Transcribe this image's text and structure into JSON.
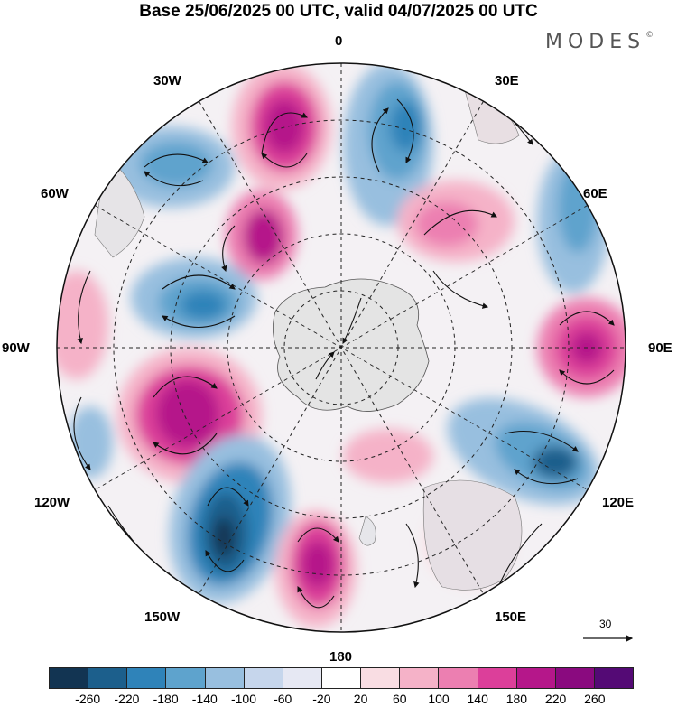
{
  "title": "Base 25/06/2025 00 UTC, valid 04/07/2025 00 UTC",
  "brand": {
    "name": "MODES",
    "mark": "©"
  },
  "longitude_labels": {
    "0": "0",
    "30E": "30E",
    "60E": "60E",
    "90E": "90E",
    "120E": "120E",
    "150E": "150E",
    "180": "180",
    "150W": "150W",
    "120W": "120W",
    "90W": "90W",
    "60W": "60W",
    "30W": "30W"
  },
  "reference_vector": {
    "label": "30"
  },
  "colorbar": {
    "colors": [
      "#123452",
      "#1c5f8c",
      "#2f83b9",
      "#5ea3cd",
      "#98bfdf",
      "#c6d6ec",
      "#e6e8f3",
      "#ffffff",
      "#f9dde3",
      "#f5b2c8",
      "#ec7fb1",
      "#dc3f9a",
      "#b5178a",
      "#8a0a7f",
      "#540a75"
    ],
    "ticks": [
      "-260",
      "-220",
      "-180",
      "-140",
      "-100",
      "-60",
      "-20",
      "20",
      "60",
      "100",
      "140",
      "180",
      "220",
      "260"
    ]
  },
  "colors": {
    "land": "#e4e4e4",
    "coast": "#555555",
    "grid": "#222222",
    "vector": "#111111"
  },
  "anomaly_centers": [
    {
      "region": "near 30W",
      "value": 240
    },
    {
      "region": "near 10E",
      "value": -180
    },
    {
      "region": "near 45W",
      "value": -160
    },
    {
      "region": "near 50E",
      "value": 120
    },
    {
      "region": "near 50W",
      "value": 180
    },
    {
      "region": "near 75W",
      "value": -190
    },
    {
      "region": "near 90E",
      "value": 250
    },
    {
      "region": "near 110W",
      "value": 240
    },
    {
      "region": "near 110E",
      "value": -230
    },
    {
      "region": "near 145W",
      "value": -260
    },
    {
      "region": "near 170W",
      "value": 220
    },
    {
      "region": "near 150E",
      "value": 60
    }
  ]
}
